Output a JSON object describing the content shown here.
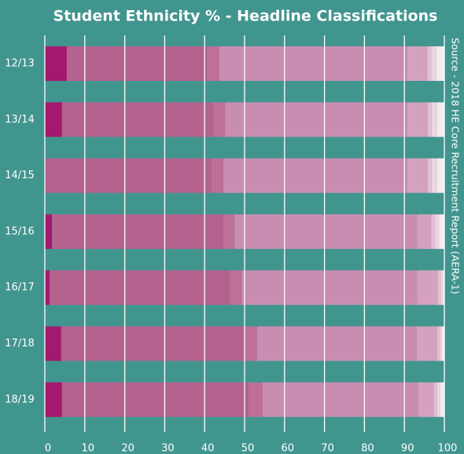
{
  "chart_data": {
    "type": "stacked-barh",
    "title": "Student Ethnicity % - Headline Classifications",
    "source": "Source - 2018 HE Core Recruitment Report (AERA-1)",
    "categories": [
      "12/13",
      "13/14",
      "14/15",
      "15/16",
      "16/17",
      "17/18",
      "18/19"
    ],
    "series": [
      {
        "color": "#a4196f",
        "values": [
          5.5,
          4.3,
          0,
          1.8,
          1.2,
          4.1,
          4.3
        ]
      },
      {
        "color": "#b5628f",
        "values": [
          35.1,
          37.8,
          41.7,
          42.9,
          45.1,
          45.7,
          46.7
        ]
      },
      {
        "color": "#be7099",
        "values": [
          3.1,
          3.0,
          3.0,
          2.8,
          3.0,
          3.3,
          3.5
        ]
      },
      {
        "color": "#c88db0",
        "values": [
          47.0,
          45.6,
          46.0,
          45.7,
          43.9,
          40.0,
          39.0
        ]
      },
      {
        "color": "#d4a2bf",
        "values": [
          5.0,
          5.1,
          5.1,
          3.5,
          5.1,
          5.1,
          3.9
        ]
      },
      {
        "color": "#e2bfd3",
        "values": [
          1.0,
          1.0,
          1.0,
          1.0,
          0.8,
          0.8,
          0.8
        ]
      },
      {
        "color": "#ecd5e1",
        "values": [
          1.3,
          1.4,
          1.4,
          1.0,
          0.6,
          0.4,
          0.8
        ]
      },
      {
        "color": "#f5ecf1",
        "values": [
          2.0,
          1.8,
          1.8,
          1.4,
          0.4,
          0.6,
          1.0
        ]
      }
    ],
    "xlim": [
      0,
      100
    ],
    "xticks": [
      0,
      10,
      20,
      30,
      40,
      50,
      60,
      70,
      80,
      90,
      100
    ],
    "grid": true
  }
}
